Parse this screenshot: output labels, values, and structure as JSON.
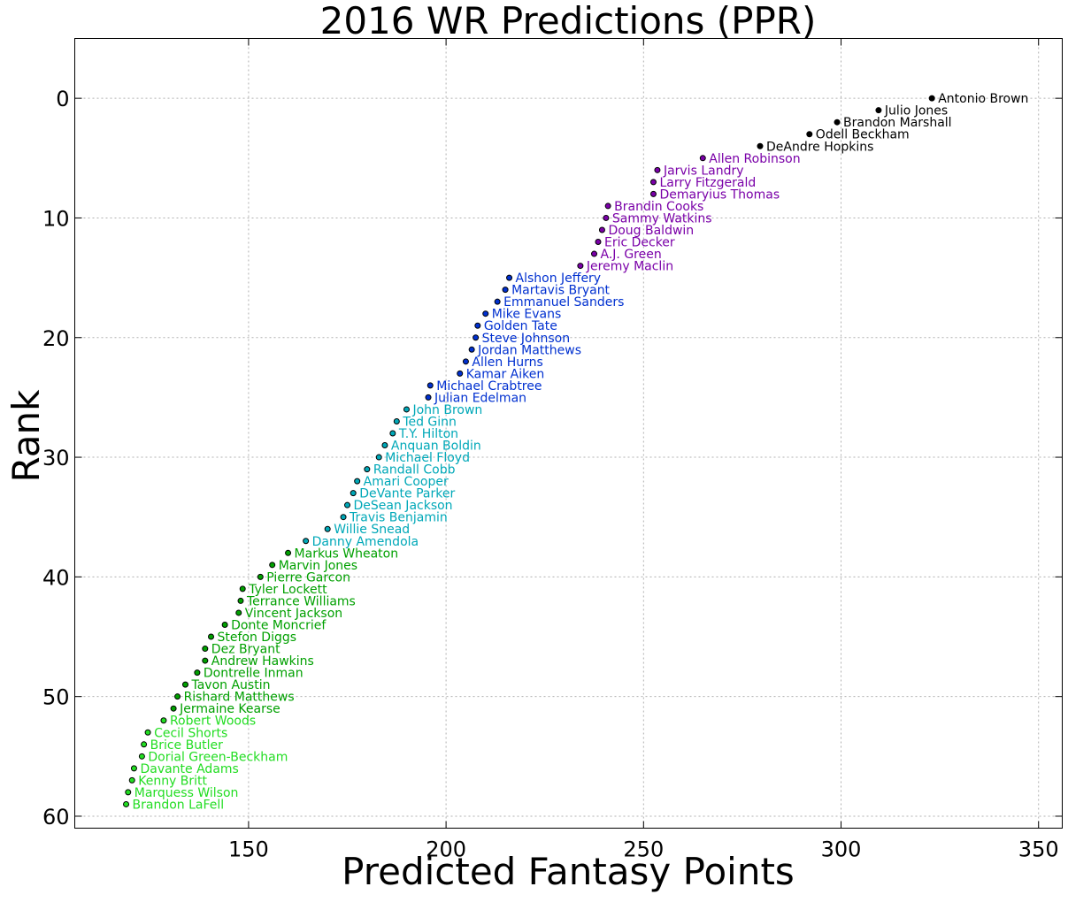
{
  "chart_data": {
    "type": "scatter",
    "title": "2016 WR Predictions (PPR)",
    "xlabel": "Predicted Fantasy Points",
    "ylabel": "Rank",
    "xlim": [
      106,
      356
    ],
    "ylim": [
      61,
      -5
    ],
    "y_inverted": true,
    "grid": true,
    "x_ticks": [
      150,
      200,
      250,
      300,
      350
    ],
    "y_ticks": [
      0,
      10,
      20,
      30,
      40,
      50,
      60
    ],
    "series": [
      {
        "color": "#000000",
        "points": [
          {
            "name": "Antonio Brown",
            "x": 323,
            "y": 0
          },
          {
            "name": "Julio Jones",
            "x": 309.5,
            "y": 1
          },
          {
            "name": "Brandon Marshall",
            "x": 299,
            "y": 2
          },
          {
            "name": "Odell Beckham",
            "x": 292,
            "y": 3
          },
          {
            "name": "DeAndre Hopkins",
            "x": 279.5,
            "y": 4
          }
        ]
      },
      {
        "color": "#7a00a8",
        "points": [
          {
            "name": "Allen Robinson",
            "x": 265,
            "y": 5
          },
          {
            "name": "Jarvis Landry",
            "x": 253.5,
            "y": 6
          },
          {
            "name": "Larry Fitzgerald",
            "x": 252.5,
            "y": 7
          },
          {
            "name": "Demaryius Thomas",
            "x": 252.5,
            "y": 8
          },
          {
            "name": "Brandin Cooks",
            "x": 241,
            "y": 9
          },
          {
            "name": "Sammy Watkins",
            "x": 240.5,
            "y": 10
          },
          {
            "name": "Doug Baldwin",
            "x": 239.5,
            "y": 11
          },
          {
            "name": "Eric Decker",
            "x": 238.5,
            "y": 12
          },
          {
            "name": "A.J. Green",
            "x": 237.5,
            "y": 13
          },
          {
            "name": "Jeremy Maclin",
            "x": 234,
            "y": 14
          }
        ]
      },
      {
        "color": "#0030d0",
        "points": [
          {
            "name": "Alshon Jeffery",
            "x": 216,
            "y": 15
          },
          {
            "name": "Martavis Bryant",
            "x": 215,
            "y": 16
          },
          {
            "name": "Emmanuel Sanders",
            "x": 213,
            "y": 17
          },
          {
            "name": "Mike Evans",
            "x": 210,
            "y": 18
          },
          {
            "name": "Golden Tate",
            "x": 208,
            "y": 19
          },
          {
            "name": "Steve Johnson",
            "x": 207.5,
            "y": 20
          },
          {
            "name": "Jordan Matthews",
            "x": 206.5,
            "y": 21
          },
          {
            "name": "Allen Hurns",
            "x": 205,
            "y": 22
          },
          {
            "name": "Kamar Aiken",
            "x": 203.5,
            "y": 23
          },
          {
            "name": "Michael Crabtree",
            "x": 196,
            "y": 24
          },
          {
            "name": "Julian Edelman",
            "x": 195.5,
            "y": 25
          }
        ]
      },
      {
        "color": "#00a8b8",
        "points": [
          {
            "name": "John Brown",
            "x": 190,
            "y": 26
          },
          {
            "name": "Ted Ginn",
            "x": 187.5,
            "y": 27
          },
          {
            "name": "T.Y. Hilton",
            "x": 186.5,
            "y": 28
          },
          {
            "name": "Anquan Boldin",
            "x": 184.5,
            "y": 29
          },
          {
            "name": "Michael Floyd",
            "x": 183,
            "y": 30
          },
          {
            "name": "Randall Cobb",
            "x": 180,
            "y": 31
          },
          {
            "name": "Amari Cooper",
            "x": 177.5,
            "y": 32
          },
          {
            "name": "DeVante Parker",
            "x": 176.5,
            "y": 33
          },
          {
            "name": "DeSean Jackson",
            "x": 175,
            "y": 34
          },
          {
            "name": "Travis Benjamin",
            "x": 174,
            "y": 35
          },
          {
            "name": "Willie Snead",
            "x": 170,
            "y": 36
          },
          {
            "name": "Danny Amendola",
            "x": 164.5,
            "y": 37
          }
        ]
      },
      {
        "color": "#00a000",
        "points": [
          {
            "name": "Markus Wheaton",
            "x": 160,
            "y": 38
          },
          {
            "name": "Marvin Jones",
            "x": 156,
            "y": 39
          },
          {
            "name": "Pierre Garcon",
            "x": 153,
            "y": 40
          },
          {
            "name": "Tyler Lockett",
            "x": 148.5,
            "y": 41
          },
          {
            "name": "Terrance Williams",
            "x": 148,
            "y": 42
          },
          {
            "name": "Vincent Jackson",
            "x": 147.5,
            "y": 43
          },
          {
            "name": "Donte Moncrief",
            "x": 144,
            "y": 44
          },
          {
            "name": "Stefon Diggs",
            "x": 140.5,
            "y": 45
          },
          {
            "name": "Dez Bryant",
            "x": 139,
            "y": 46
          },
          {
            "name": "Andrew Hawkins",
            "x": 139,
            "y": 47
          },
          {
            "name": "Dontrelle Inman",
            "x": 137,
            "y": 48
          },
          {
            "name": "Tavon Austin",
            "x": 134,
            "y": 49
          },
          {
            "name": "Rishard Matthews",
            "x": 132,
            "y": 50
          },
          {
            "name": "Jermaine Kearse",
            "x": 131,
            "y": 51
          }
        ]
      },
      {
        "color": "#22dd22",
        "points": [
          {
            "name": "Robert Woods",
            "x": 128.5,
            "y": 52
          },
          {
            "name": "Cecil Shorts",
            "x": 124.5,
            "y": 53
          },
          {
            "name": "Brice Butler",
            "x": 123.5,
            "y": 54
          },
          {
            "name": "Dorial Green-Beckham",
            "x": 123,
            "y": 55
          },
          {
            "name": "Davante Adams",
            "x": 121,
            "y": 56
          },
          {
            "name": "Kenny Britt",
            "x": 120.5,
            "y": 57
          },
          {
            "name": "Marquess Wilson",
            "x": 119.5,
            "y": 58
          },
          {
            "name": "Brandon LaFell",
            "x": 119,
            "y": 59
          }
        ]
      }
    ]
  }
}
